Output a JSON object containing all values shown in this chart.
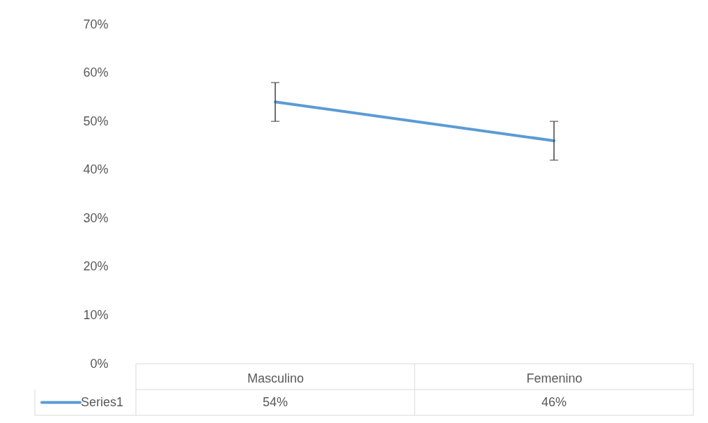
{
  "chart_data": {
    "type": "line",
    "categories": [
      "Masculino",
      "Femenino"
    ],
    "series": [
      {
        "name": "Series1",
        "color": "#5b9bd5",
        "values": [
          54,
          46
        ],
        "errors": [
          4,
          4
        ],
        "value_labels": [
          "54%",
          "46%"
        ]
      }
    ],
    "ylim": [
      0,
      70
    ],
    "yticks": [
      {
        "value": 0,
        "label": "0%"
      },
      {
        "value": 10,
        "label": "10%"
      },
      {
        "value": 20,
        "label": "20%"
      },
      {
        "value": 30,
        "label": "30%"
      },
      {
        "value": 40,
        "label": "40%"
      },
      {
        "value": 50,
        "label": "50%"
      },
      {
        "value": 60,
        "label": "60%"
      },
      {
        "value": 70,
        "label": "70%"
      }
    ],
    "grid": false,
    "marker": "none",
    "line_style": "solid"
  }
}
